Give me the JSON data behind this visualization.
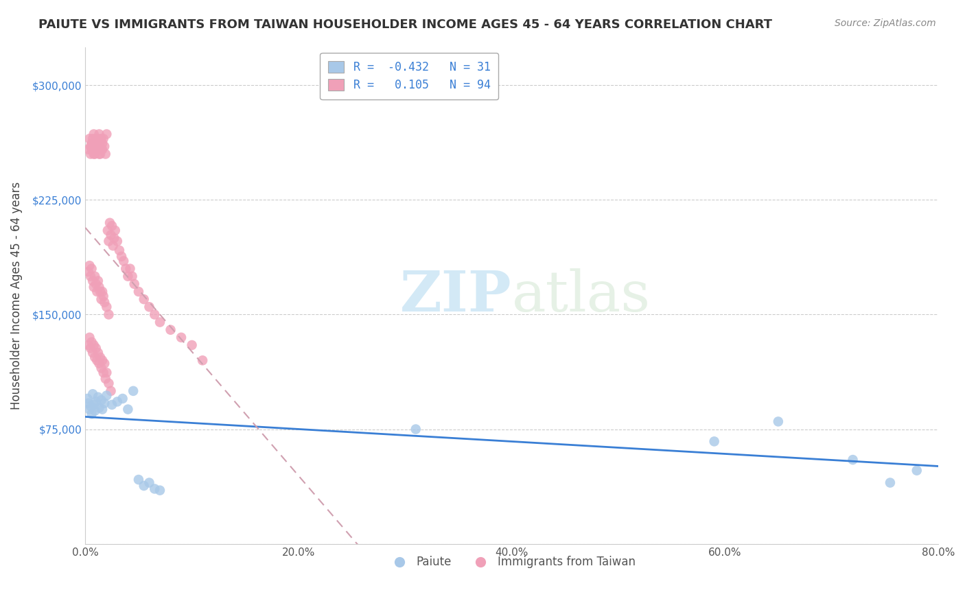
{
  "title": "PAIUTE VS IMMIGRANTS FROM TAIWAN HOUSEHOLDER INCOME AGES 45 - 64 YEARS CORRELATION CHART",
  "source": "Source: ZipAtlas.com",
  "ylabel": "Householder Income Ages 45 - 64 years",
  "xlim": [
    0.0,
    0.8
  ],
  "ylim": [
    0,
    325000
  ],
  "yticks": [
    0,
    75000,
    150000,
    225000,
    300000
  ],
  "ytick_labels": [
    "",
    "$75,000",
    "$150,000",
    "$225,000",
    "$300,000"
  ],
  "xticks": [
    0.0,
    0.2,
    0.4,
    0.6,
    0.8
  ],
  "xtick_labels": [
    "0.0%",
    "20.0%",
    "40.0%",
    "60.0%",
    "80.0%"
  ],
  "watermark_zip": "ZIP",
  "watermark_atlas": "atlas",
  "legend_r1": "-0.432",
  "legend_n1": "31",
  "legend_r2": "0.105",
  "legend_n2": "94",
  "paiute_color": "#a8c8e8",
  "taiwan_color": "#f0a0b8",
  "paiute_line_color": "#3a7fd5",
  "taiwan_line_color": "#e06080",
  "taiwan_trend_color": "#d0a0b0",
  "paiute_scatter_x": [
    0.002,
    0.003,
    0.004,
    0.005,
    0.006,
    0.007,
    0.008,
    0.009,
    0.01,
    0.012,
    0.013,
    0.015,
    0.016,
    0.018,
    0.02,
    0.025,
    0.03,
    0.035,
    0.04,
    0.045,
    0.05,
    0.055,
    0.06,
    0.065,
    0.07,
    0.31,
    0.59,
    0.65,
    0.72,
    0.755,
    0.78
  ],
  "paiute_scatter_y": [
    95000,
    92000,
    88000,
    90000,
    85000,
    98000,
    91000,
    87000,
    93000,
    96000,
    89000,
    94000,
    88000,
    92000,
    97000,
    91000,
    93000,
    95000,
    88000,
    100000,
    42000,
    38000,
    40000,
    36000,
    35000,
    75000,
    67000,
    80000,
    55000,
    40000,
    48000
  ],
  "taiwan_scatter_x": [
    0.003,
    0.004,
    0.005,
    0.005,
    0.006,
    0.006,
    0.007,
    0.007,
    0.008,
    0.008,
    0.009,
    0.009,
    0.01,
    0.01,
    0.011,
    0.011,
    0.012,
    0.012,
    0.013,
    0.013,
    0.014,
    0.014,
    0.015,
    0.015,
    0.016,
    0.016,
    0.017,
    0.018,
    0.019,
    0.02,
    0.021,
    0.022,
    0.023,
    0.024,
    0.025,
    0.026,
    0.027,
    0.028,
    0.03,
    0.032,
    0.034,
    0.036,
    0.038,
    0.04,
    0.042,
    0.044,
    0.046,
    0.05,
    0.055,
    0.06,
    0.065,
    0.07,
    0.08,
    0.09,
    0.1,
    0.11,
    0.003,
    0.004,
    0.005,
    0.006,
    0.007,
    0.008,
    0.009,
    0.01,
    0.011,
    0.012,
    0.013,
    0.014,
    0.015,
    0.016,
    0.017,
    0.018,
    0.02,
    0.022,
    0.003,
    0.004,
    0.005,
    0.006,
    0.007,
    0.008,
    0.009,
    0.01,
    0.011,
    0.012,
    0.013,
    0.014,
    0.015,
    0.016,
    0.017,
    0.018,
    0.019,
    0.02,
    0.022,
    0.024
  ],
  "taiwan_scatter_y": [
    258000,
    265000,
    260000,
    255000,
    262000,
    258000,
    265000,
    260000,
    268000,
    255000,
    260000,
    255000,
    258000,
    265000,
    262000,
    258000,
    265000,
    260000,
    255000,
    268000,
    260000,
    255000,
    258000,
    265000,
    262000,
    258000,
    265000,
    260000,
    255000,
    268000,
    205000,
    198000,
    210000,
    202000,
    208000,
    195000,
    200000,
    205000,
    198000,
    192000,
    188000,
    185000,
    180000,
    175000,
    180000,
    175000,
    170000,
    165000,
    160000,
    155000,
    150000,
    145000,
    140000,
    135000,
    130000,
    120000,
    178000,
    182000,
    175000,
    180000,
    172000,
    168000,
    175000,
    170000,
    165000,
    172000,
    168000,
    165000,
    160000,
    165000,
    162000,
    158000,
    155000,
    150000,
    130000,
    135000,
    128000,
    132000,
    125000,
    130000,
    122000,
    128000,
    120000,
    125000,
    118000,
    122000,
    115000,
    120000,
    112000,
    118000,
    108000,
    112000,
    105000,
    100000
  ]
}
